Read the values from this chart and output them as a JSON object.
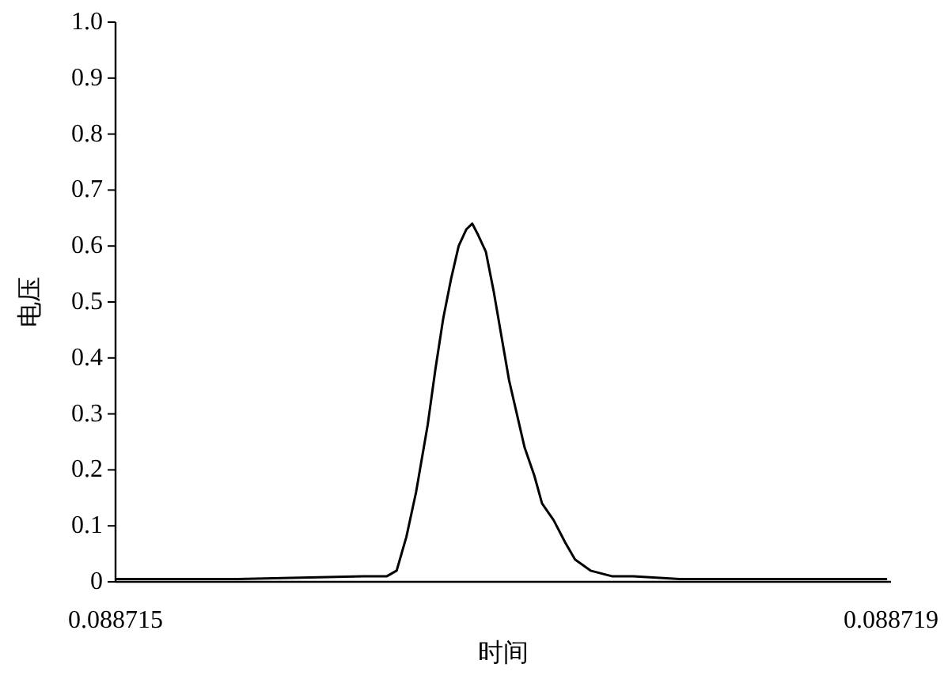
{
  "chart_data": {
    "type": "line",
    "xlabel": "时间",
    "ylabel": "电压",
    "x": [
      0.088715,
      0.08871563,
      0.08871628,
      0.0887164,
      0.08871645,
      0.0887165,
      0.08871655,
      0.08871661,
      0.08871665,
      0.08871669,
      0.08871673,
      0.08871677,
      0.08871681,
      0.08871684,
      0.08871687,
      0.08871691,
      0.08871695,
      0.08871699,
      0.08871703,
      0.08871707,
      0.08871711,
      0.08871716,
      0.0887172,
      0.08871726,
      0.08871732,
      0.08871737,
      0.08871745,
      0.08871756,
      0.08871767,
      0.08871791,
      0.08871849,
      0.08871898
    ],
    "series": [
      {
        "color": "#000000",
        "values": [
          0.005,
          0.005,
          0.01,
          0.01,
          0.02,
          0.08,
          0.16,
          0.28,
          0.38,
          0.47,
          0.54,
          0.6,
          0.63,
          0.64,
          0.62,
          0.59,
          0.52,
          0.44,
          0.36,
          0.3,
          0.24,
          0.19,
          0.14,
          0.11,
          0.07,
          0.04,
          0.02,
          0.01,
          0.01,
          0.005,
          0.005,
          0.005
        ]
      }
    ],
    "xlim": [
      0.088715,
      0.088719
    ],
    "xticks": [
      {
        "value": 0.088715,
        "label": "0.088715"
      },
      {
        "value": 0.088719,
        "label": "0.088719"
      }
    ],
    "ylim": [
      0,
      1
    ],
    "yticks": [
      0,
      {
        "value": 0.1,
        "label": "0.1"
      },
      {
        "value": 0.2,
        "label": "0.2"
      },
      {
        "value": 0.3,
        "label": "0.3"
      },
      {
        "value": 0.4,
        "label": "0.4"
      },
      {
        "value": 0.5,
        "label": "0.5"
      },
      {
        "value": 0.6,
        "label": "0.6"
      },
      {
        "value": 0.7,
        "label": "0.7"
      },
      {
        "value": 0.8,
        "label": "0.8"
      },
      {
        "value": 0.9,
        "label": "0.9"
      },
      {
        "value": 1,
        "label": "1.0"
      }
    ],
    "grid": false,
    "marker": "none",
    "line_style": "solid"
  }
}
